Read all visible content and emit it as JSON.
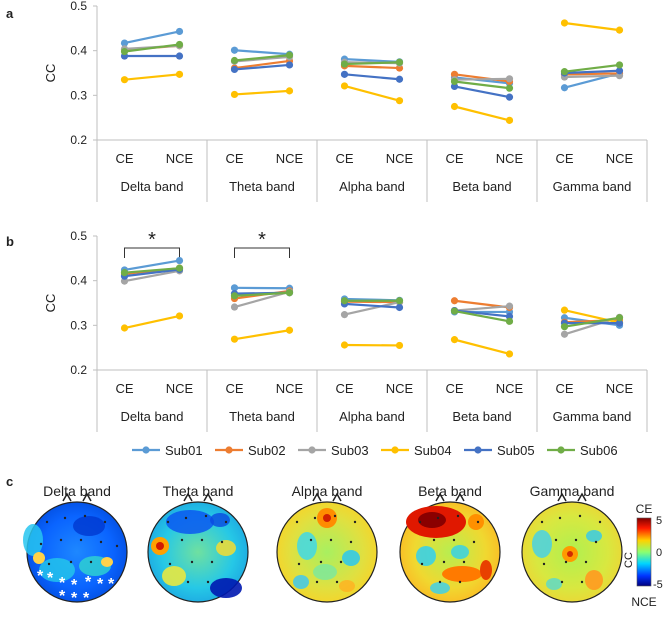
{
  "chart_data": [
    {
      "type": "line",
      "panel": "a",
      "ylabel": "CC",
      "ylim": [
        0.2,
        0.5
      ],
      "yticks": [
        "0.2",
        "0.3",
        "0.4",
        "0.5"
      ],
      "conditions": [
        "CE",
        "NCE"
      ],
      "bands": [
        "Delta band",
        "Theta band",
        "Alpha band",
        "Beta band",
        "Gamma band"
      ],
      "series": [
        {
          "name": "Sub01",
          "values": [
            [
              0.417,
              0.443
            ],
            [
              0.401,
              0.392
            ],
            [
              0.381,
              0.375
            ],
            [
              0.34,
              0.327
            ],
            [
              0.317,
              0.349
            ]
          ]
        },
        {
          "name": "Sub02",
          "values": [
            [
              0.402,
              0.411
            ],
            [
              0.361,
              0.377
            ],
            [
              0.366,
              0.361
            ],
            [
              0.347,
              0.331
            ],
            [
              0.347,
              0.349
            ]
          ]
        },
        {
          "name": "Sub03",
          "values": [
            [
              0.404,
              0.411
            ],
            [
              0.376,
              0.386
            ],
            [
              0.374,
              0.372
            ],
            [
              0.335,
              0.337
            ],
            [
              0.341,
              0.344
            ]
          ]
        },
        {
          "name": "Sub04",
          "values": [
            [
              0.335,
              0.347
            ],
            [
              0.302,
              0.31
            ],
            [
              0.321,
              0.288
            ],
            [
              0.275,
              0.244
            ],
            [
              0.462,
              0.446
            ]
          ]
        },
        {
          "name": "Sub05",
          "values": [
            [
              0.388,
              0.388
            ],
            [
              0.358,
              0.368
            ],
            [
              0.347,
              0.336
            ],
            [
              0.32,
              0.296
            ],
            [
              0.35,
              0.355
            ]
          ]
        },
        {
          "name": "Sub06",
          "values": [
            [
              0.398,
              0.414
            ],
            [
              0.378,
              0.39
            ],
            [
              0.37,
              0.374
            ],
            [
              0.331,
              0.316
            ],
            [
              0.353,
              0.368
            ]
          ]
        }
      ]
    },
    {
      "type": "line",
      "panel": "b",
      "ylabel": "CC",
      "ylim": [
        0.2,
        0.5
      ],
      "yticks": [
        "0.2",
        "0.3",
        "0.4",
        "0.5"
      ],
      "conditions": [
        "CE",
        "NCE"
      ],
      "bands": [
        "Delta band",
        "Theta band",
        "Alpha band",
        "Beta band",
        "Gamma band"
      ],
      "significance": [
        {
          "band": "Delta band",
          "label": "*"
        },
        {
          "band": "Theta band",
          "label": "*"
        }
      ],
      "series": [
        {
          "name": "Sub01",
          "values": [
            [
              0.424,
              0.445
            ],
            [
              0.384,
              0.383
            ],
            [
              0.359,
              0.356
            ],
            [
              0.33,
              0.33
            ],
            [
              0.317,
              0.3
            ]
          ]
        },
        {
          "name": "Sub02",
          "values": [
            [
              0.415,
              0.428
            ],
            [
              0.36,
              0.377
            ],
            [
              0.353,
              0.352
            ],
            [
              0.355,
              0.34
            ],
            [
              0.307,
              0.312
            ]
          ]
        },
        {
          "name": "Sub03",
          "values": [
            [
              0.399,
              0.422
            ],
            [
              0.341,
              0.375
            ],
            [
              0.324,
              0.352
            ],
            [
              0.333,
              0.343
            ],
            [
              0.28,
              0.318
            ]
          ]
        },
        {
          "name": "Sub04",
          "values": [
            [
              0.294,
              0.321
            ],
            [
              0.269,
              0.289
            ],
            [
              0.256,
              0.255
            ],
            [
              0.268,
              0.236
            ],
            [
              0.334,
              0.306
            ]
          ]
        },
        {
          "name": "Sub05",
          "values": [
            [
              0.41,
              0.425
            ],
            [
              0.371,
              0.373
            ],
            [
              0.348,
              0.34
            ],
            [
              0.333,
              0.32
            ],
            [
              0.305,
              0.305
            ]
          ]
        },
        {
          "name": "Sub06",
          "values": [
            [
              0.418,
              0.428
            ],
            [
              0.366,
              0.373
            ],
            [
              0.355,
              0.355
            ],
            [
              0.332,
              0.309
            ],
            [
              0.297,
              0.317
            ]
          ]
        }
      ]
    },
    {
      "type": "heatmap",
      "panel": "c",
      "bands": [
        "Delta band",
        "Theta band",
        "Alpha band",
        "Beta band",
        "Gamma band"
      ],
      "colorbar": {
        "label": "CC",
        "top_label": "CE",
        "bottom_label": "NCE",
        "range": [
          -5,
          5
        ],
        "ticks": [
          "5",
          "0",
          "-5"
        ]
      },
      "significance_marker": "*"
    }
  ],
  "colors": {
    "Sub01": "#5b9bd5",
    "Sub02": "#ed7d31",
    "Sub03": "#a5a5a5",
    "Sub04": "#ffc000",
    "Sub05": "#4472c4",
    "Sub06": "#70ad47",
    "axis": "#bfbfbf"
  },
  "panel_labels": {
    "a": "a",
    "b": "b",
    "c": "c"
  }
}
